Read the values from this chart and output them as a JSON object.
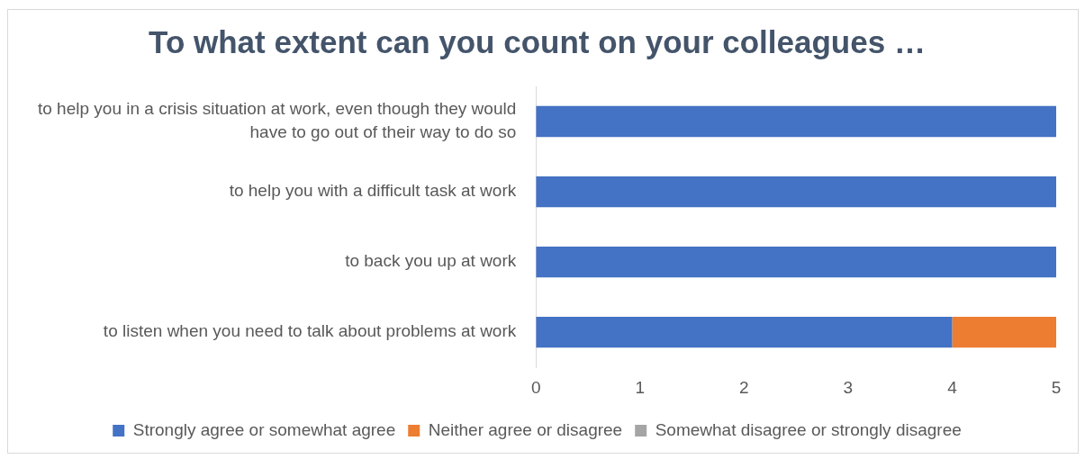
{
  "chart_data": {
    "type": "bar",
    "title": "To what extent can you count on your colleagues …",
    "orientation": "horizontal",
    "stacked": true,
    "categories": [
      "to help you in a crisis situation at work, even though they would have to go out of their way to do so",
      "to help you with a difficult task at work",
      "to back you up at work",
      "to listen when you need to talk about problems at work"
    ],
    "series": [
      {
        "name": "Strongly agree or somewhat agree",
        "color": "#4472c4",
        "values": [
          5,
          5,
          5,
          4
        ]
      },
      {
        "name": "Neither agree or disagree",
        "color": "#ed7d31",
        "values": [
          0,
          0,
          0,
          1
        ]
      },
      {
        "name": "Somewhat disagree or strongly disagree",
        "color": "#a5a5a5",
        "values": [
          0,
          0,
          0,
          0
        ]
      }
    ],
    "xlim": [
      0,
      5
    ],
    "xticks": [
      0,
      1,
      2,
      3,
      4,
      5
    ],
    "grid": false,
    "legend": "bottom"
  }
}
